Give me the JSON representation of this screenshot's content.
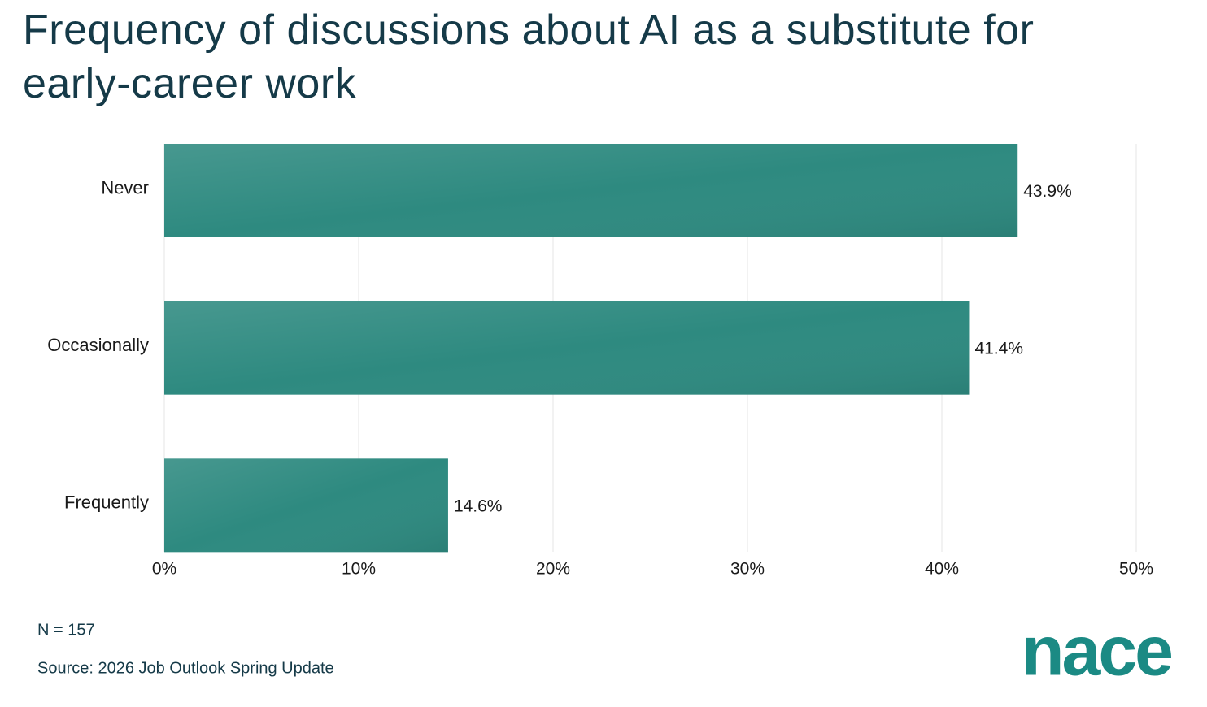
{
  "chart_data": {
    "type": "barh",
    "title": "Frequency of discussions about AI as a substitute for early-career work",
    "categories": [
      "Never",
      "Occasionally",
      "Frequently"
    ],
    "values": [
      43.9,
      41.4,
      14.6
    ],
    "value_labels": [
      "43.9%",
      "41.4%",
      "14.6%"
    ],
    "color": "#2e8a80",
    "xlim": [
      0,
      50
    ],
    "xticks": [
      {
        "value": 0,
        "label": "0%"
      },
      {
        "value": 10,
        "label": "10%"
      },
      {
        "value": 20,
        "label": "20%"
      },
      {
        "value": 30,
        "label": "30%"
      },
      {
        "value": 40,
        "label": "40%"
      },
      {
        "value": 50,
        "label": "50%"
      }
    ],
    "grid": true,
    "note": "N = 157",
    "source": "Source: 2026 Job Outlook Spring Update",
    "logo": "nace"
  }
}
